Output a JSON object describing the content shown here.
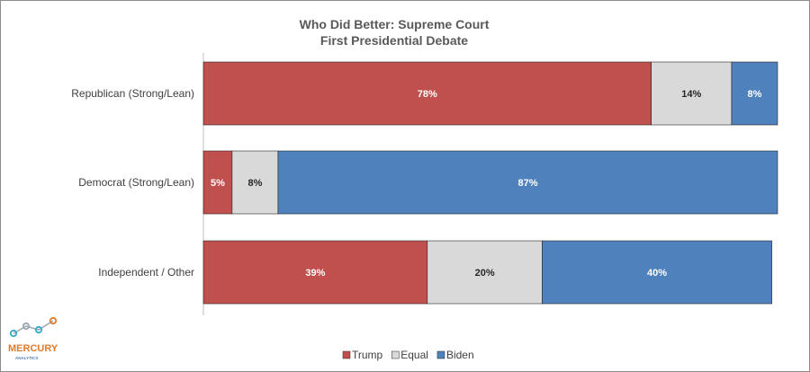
{
  "chart_data": {
    "type": "bar",
    "orientation": "horizontal",
    "stacked": true,
    "title": "Who Did Better: Supreme Court",
    "subtitle": "First Presidential Debate",
    "categories": [
      "Republican (Strong/Lean)",
      "Democrat (Strong/Lean)",
      "Independent / Other"
    ],
    "series": [
      {
        "name": "Trump",
        "values": [
          78,
          5,
          39
        ],
        "color": "#c0504d"
      },
      {
        "name": "Equal",
        "values": [
          14,
          8,
          20
        ],
        "color": "#d9d9d9"
      },
      {
        "name": "Biden",
        "values": [
          8,
          87,
          40
        ],
        "color": "#4f81bd"
      }
    ],
    "labels": [
      [
        "78%",
        "14%",
        "8%"
      ],
      [
        "5%",
        "8%",
        "87%"
      ],
      [
        "39%",
        "20%",
        "40%"
      ]
    ],
    "label_colors": [
      "#ffffff",
      "#262626",
      "#ffffff"
    ],
    "xlim": [
      0,
      100
    ],
    "grid": false,
    "legend_position": "bottom"
  },
  "logo": {
    "name": "MERCURY",
    "sub": "ANALYTICS",
    "color": "#e07b2a",
    "dot_color": "#3aa7c9",
    "icon": "mercury-analytics-logo-icon"
  }
}
